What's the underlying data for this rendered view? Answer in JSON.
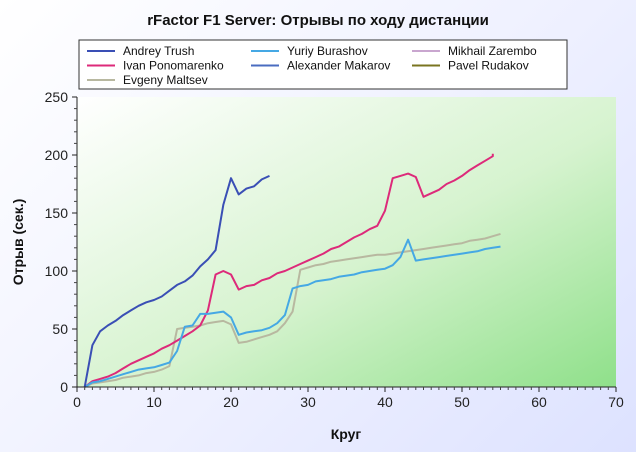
{
  "chart_data": {
    "type": "line",
    "title": "rFactor F1 Server: Отрывы по ходу дистанции",
    "xlabel": "Круг",
    "ylabel": "Отрыв (сек.)",
    "xlim": [
      0,
      70
    ],
    "ylim": [
      0,
      250
    ],
    "x_ticks": [
      0,
      10,
      20,
      30,
      40,
      50,
      60,
      70
    ],
    "y_ticks": [
      0,
      50,
      100,
      150,
      200,
      250
    ],
    "grid": false,
    "legend_position": "top",
    "series": [
      {
        "name": "Andrey Trush",
        "color": "#3a4fb5",
        "x": [
          1,
          2,
          3,
          4,
          5,
          6,
          7,
          8,
          9,
          10,
          11,
          12,
          13,
          14,
          15,
          16,
          17,
          18,
          19,
          20,
          21,
          22,
          23,
          24,
          25
        ],
        "y": [
          0,
          36,
          48,
          53,
          57,
          62,
          66,
          70,
          73,
          75,
          78,
          83,
          88,
          91,
          96,
          104,
          110,
          118,
          157,
          180,
          166,
          171,
          173,
          179,
          182
        ]
      },
      {
        "name": "Ivan Ponomarenko",
        "color": "#dd2a7a",
        "x": [
          1,
          2,
          3,
          4,
          5,
          6,
          7,
          8,
          9,
          10,
          11,
          12,
          13,
          14,
          15,
          16,
          17,
          18,
          19,
          20,
          21,
          22,
          23,
          24,
          25,
          26,
          27,
          28,
          29,
          30,
          31,
          32,
          33,
          34,
          35,
          36,
          37,
          38,
          39,
          40,
          41,
          42,
          43,
          44,
          45,
          46,
          47,
          48,
          49,
          50,
          51,
          52,
          53,
          54
        ],
        "y": [
          0,
          5,
          7,
          9,
          12,
          16,
          20,
          23,
          26,
          29,
          33,
          36,
          40,
          44,
          48,
          53,
          66,
          97,
          100,
          97,
          84,
          87,
          88,
          92,
          94,
          98,
          100,
          103,
          106,
          109,
          112,
          115,
          119,
          121,
          125,
          129,
          132,
          136,
          139,
          152,
          180,
          182,
          184,
          181,
          164,
          167,
          170,
          175,
          178,
          182,
          187,
          191,
          195,
          199
        ],
        "end_value_note": "final lap gap approx 201"
      },
      {
        "name": "Evgeny Maltsev",
        "color": "#b8b8a0",
        "x": [
          1,
          2,
          3,
          4,
          5,
          6,
          7,
          8,
          9,
          10,
          11,
          12,
          13,
          14,
          15,
          16,
          17,
          18,
          19,
          20,
          21,
          22,
          23,
          24,
          25,
          26,
          27,
          28,
          29,
          30,
          31,
          32,
          33,
          34,
          35,
          36,
          37,
          38,
          39,
          40,
          41,
          42,
          43,
          44,
          45,
          46,
          47,
          48,
          49,
          50,
          51,
          52,
          53,
          54,
          55
        ],
        "y": [
          0,
          3,
          4,
          5,
          6,
          8,
          9,
          10,
          12,
          13,
          15,
          18,
          50,
          51,
          52,
          53,
          55,
          56,
          57,
          54,
          38,
          39,
          41,
          43,
          45,
          48,
          55,
          65,
          101,
          103,
          105,
          106,
          108,
          109,
          110,
          111,
          112,
          113,
          114,
          114,
          115,
          116,
          117,
          118,
          119,
          120,
          121,
          122,
          123,
          124,
          126,
          127,
          128,
          130,
          132
        ]
      },
      {
        "name": "Yuriy Burashov",
        "color": "#45a8e4",
        "x": [
          1,
          2,
          3,
          4,
          5,
          6,
          7,
          8,
          9,
          10,
          11,
          12,
          13,
          14,
          15,
          16,
          17,
          18,
          19,
          20,
          21,
          22,
          23,
          24,
          25,
          26,
          27,
          28,
          29,
          30,
          31,
          32,
          33,
          34,
          35,
          36,
          37,
          38,
          39,
          40,
          41,
          42,
          43,
          44,
          45,
          46,
          47,
          48,
          49,
          50,
          51,
          52,
          53,
          54,
          55
        ],
        "y": [
          0,
          4,
          5,
          7,
          9,
          11,
          13,
          15,
          16,
          17,
          19,
          21,
          31,
          52,
          53,
          63,
          63,
          64,
          65,
          60,
          45,
          47,
          48,
          49,
          51,
          55,
          62,
          85,
          87,
          88,
          91,
          92,
          93,
          95,
          96,
          97,
          99,
          100,
          101,
          102,
          105,
          112,
          127,
          109,
          110,
          111,
          112,
          113,
          114,
          115,
          116,
          117,
          119,
          120,
          121
        ]
      },
      {
        "name": "Alexander Makarov",
        "color": "#4a6cc0",
        "x": [],
        "y": []
      },
      {
        "name": "Mikhail Zarembo",
        "color": "#c9a6cf",
        "x": [],
        "y": []
      },
      {
        "name": "Pavel Rudakov",
        "color": "#7a7420",
        "x": [],
        "y": []
      }
    ]
  }
}
